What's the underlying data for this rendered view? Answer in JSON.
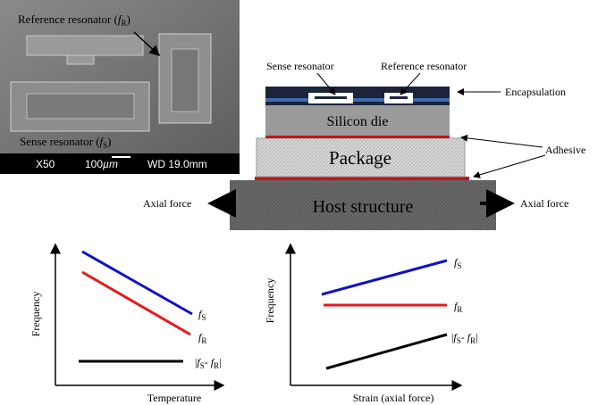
{
  "micrograph": {
    "reference_label": [
      "Reference resonator (",
      "f",
      "R",
      ")"
    ],
    "sense_label": [
      "Sense resonator (",
      "f",
      "S",
      ")"
    ],
    "magnification": "X50",
    "scale": [
      "100",
      "µm"
    ],
    "working_distance": "WD 19.0mm"
  },
  "cross_section": {
    "sense_resonator": "Sense resonator",
    "reference_resonator": "Reference resonator",
    "encapsulation": "Encapsulation",
    "silicon_die": "Silicon die",
    "adhesive": "Adhesive",
    "package": "Package",
    "host_structure": "Host structure",
    "axial_force_left": "Axial force",
    "axial_force_right": "Axial force"
  },
  "graphs": [
    {
      "y_label": "Frequency",
      "x_label": "Temperature",
      "f_s": [
        "f",
        "S"
      ],
      "f_r": [
        "f",
        "R"
      ],
      "difference": [
        "|",
        "f",
        "S",
        "- ",
        "f",
        "R",
        "|"
      ]
    },
    {
      "y_label": "Frequency",
      "x_label": "Strain (axial force)",
      "f_s": [
        "f",
        "S"
      ],
      "f_r": [
        "f",
        "R"
      ],
      "difference": [
        "|",
        "f",
        "S",
        "- ",
        "f",
        "R",
        "|"
      ]
    }
  ]
}
